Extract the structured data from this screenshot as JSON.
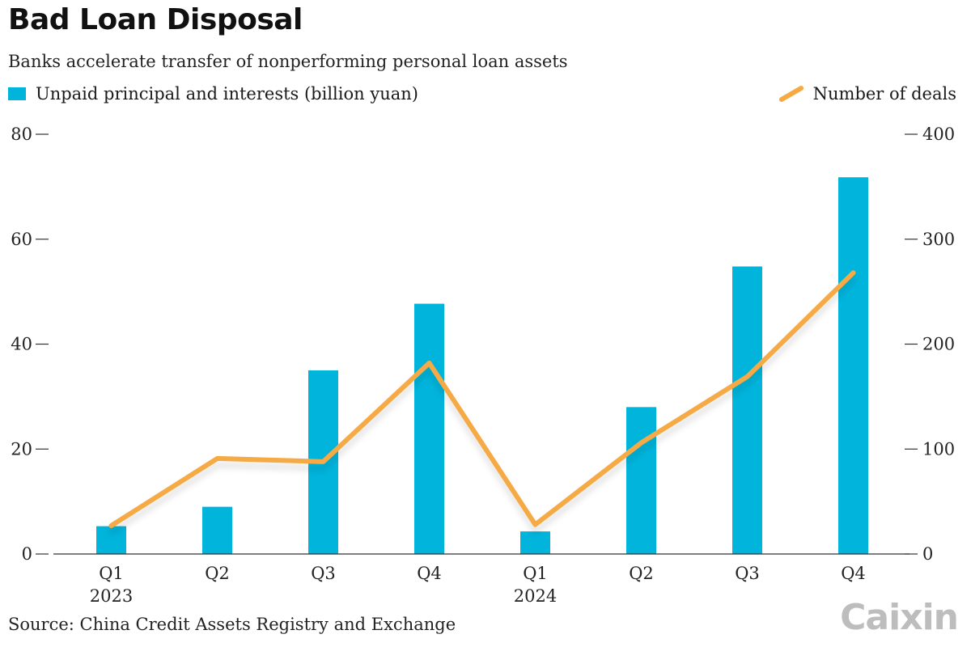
{
  "title": "Bad Loan Disposal",
  "subtitle": "Banks accelerate transfer of nonperforming personal loan assets",
  "source": "Source: China Credit Assets Registry and Exchange",
  "logo": "Caixin",
  "colors": {
    "bar": "#00b4dc",
    "line": "#f5aa45",
    "axis": "#333333"
  },
  "chart_data": {
    "type": "bar",
    "categories": [
      "Q1",
      "Q2",
      "Q3",
      "Q4",
      "Q1",
      "Q2",
      "Q3",
      "Q4"
    ],
    "year_labels": [
      "2023",
      "",
      "",
      "",
      "2024",
      "",
      "",
      ""
    ],
    "series": [
      {
        "name": "Unpaid principal and interests (billion yuan)",
        "type": "bar",
        "axis": "left",
        "values": [
          5.3,
          9,
          35,
          47.7,
          4.3,
          28,
          54.8,
          71.8
        ]
      },
      {
        "name": "Number of deals",
        "type": "line",
        "axis": "right",
        "values": [
          27,
          91,
          88,
          182,
          28,
          106,
          169,
          268
        ]
      }
    ],
    "left_axis": {
      "ylim": [
        0,
        80
      ],
      "ticks": [
        "0",
        "20",
        "40",
        "60",
        "80"
      ]
    },
    "right_axis": {
      "ylim": [
        0,
        400
      ],
      "ticks": [
        "0",
        "100",
        "200",
        "300",
        "400"
      ]
    },
    "legend": "top",
    "grid": false
  }
}
